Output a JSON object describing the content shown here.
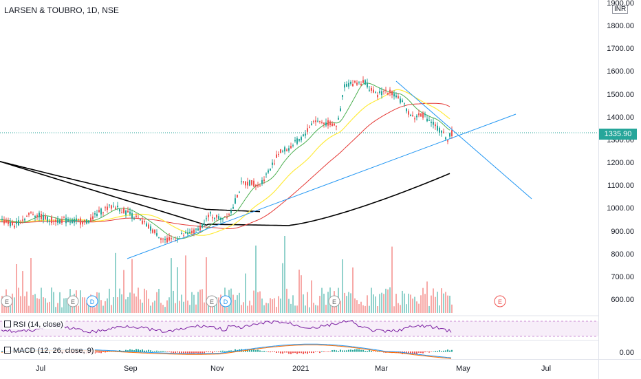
{
  "header": {
    "symbol_title": "LARSEN & TOUBRO, 1D, NSE",
    "currency": "INR"
  },
  "price_axis": {
    "labels": [
      "1900.00",
      "1800.00",
      "1700.00",
      "1600.00",
      "1500.00",
      "1400.00",
      "1300.00",
      "1200.00",
      "1100.00",
      "1000.00",
      "900.00",
      "800.00",
      "700.00",
      "600.00"
    ],
    "last_price": "1335.90"
  },
  "time_axis": {
    "labels": [
      "Jul",
      "Sep",
      "Nov",
      "2021",
      "Mar",
      "May",
      "Jul"
    ]
  },
  "indicators": {
    "rsi_label": "RSI (14, close)",
    "macd_label": "MACD (12, 26, close, 9)",
    "macd_zero": "0.00"
  },
  "events": [
    "E",
    "E",
    "D",
    "E",
    "D",
    "E",
    "E"
  ],
  "colors": {
    "up": "#26a69a",
    "down": "#ef5350",
    "trendline": "#2196f3",
    "ma_black": "#000000",
    "ma_red": "#e53935",
    "ma_yellow": "#ffeb3b",
    "ma_green": "#4caf50",
    "rsi": "#7b1fa2"
  },
  "chart_data": {
    "type": "candlestick",
    "title": "LARSEN & TOUBRO, 1D, NSE",
    "price_ylim": [
      550,
      1920
    ],
    "x_ticks": [
      "Jul",
      "Sep",
      "Nov",
      "2021",
      "Mar",
      "May",
      "Jul"
    ],
    "last_price": 1335.9,
    "key_prices": {
      "start": 950,
      "sep_high": 1020,
      "oct_low": 860,
      "feb_high": 1590,
      "mar_high": 1570,
      "last": 1335.9
    }
  }
}
